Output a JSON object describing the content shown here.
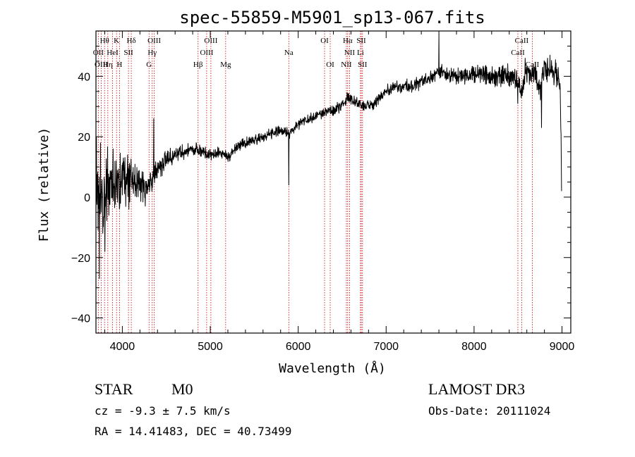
{
  "chart_data": {
    "type": "line",
    "title": "spec-55859-M5901_sp13-067.fits",
    "xlabel": "Wavelength (Å)",
    "ylabel": "Flux (relative)",
    "xlim": [
      3700,
      9100
    ],
    "ylim": [
      -45,
      55
    ],
    "x_ticks": [
      4000,
      5000,
      6000,
      7000,
      8000,
      9000
    ],
    "y_ticks": [
      -40,
      -20,
      0,
      20,
      40
    ],
    "lines": [
      {
        "label": "Hθ",
        "x": 3798,
        "row": 0
      },
      {
        "label": "K",
        "x": 3934,
        "row": 0
      },
      {
        "label": "Hδ",
        "x": 4102,
        "row": 0
      },
      {
        "label": "OIII",
        "x": 4363,
        "row": 0
      },
      {
        "label": "OIII",
        "x": 5007,
        "row": 0
      },
      {
        "label": "OI",
        "x": 6300,
        "row": 0
      },
      {
        "label": "Hα",
        "x": 6563,
        "row": 0
      },
      {
        "label": "SII",
        "x": 6717,
        "row": 0
      },
      {
        "label": "CaII",
        "x": 8542,
        "row": 0
      },
      {
        "label": "OII",
        "x": 3727,
        "row": 1
      },
      {
        "label": "HeI",
        "x": 3889,
        "row": 1
      },
      {
        "label": "SII",
        "x": 4070,
        "row": 1
      },
      {
        "label": "Hγ",
        "x": 4340,
        "row": 1
      },
      {
        "label": "OIII",
        "x": 4959,
        "row": 1
      },
      {
        "label": "Na",
        "x": 5893,
        "row": 1
      },
      {
        "label": "NII",
        "x": 6584,
        "row": 1
      },
      {
        "label": "Li",
        "x": 6708,
        "row": 1
      },
      {
        "label": "CaII",
        "x": 8498,
        "row": 1
      },
      {
        "label": "OIII",
        "x": 3760,
        "row": 2
      },
      {
        "label": "Hη",
        "x": 3835,
        "row": 2
      },
      {
        "label": "H",
        "x": 3968,
        "row": 2
      },
      {
        "label": "G",
        "x": 4304,
        "row": 2
      },
      {
        "label": "Hβ",
        "x": 4861,
        "row": 2
      },
      {
        "label": "Mg",
        "x": 5175,
        "row": 2
      },
      {
        "label": "OI",
        "x": 6364,
        "row": 2
      },
      {
        "label": "NII",
        "x": 6548,
        "row": 2
      },
      {
        "label": "SII",
        "x": 6731,
        "row": 2
      },
      {
        "label": "CaII",
        "x": 8662,
        "row": 2
      }
    ],
    "spectrum_anchors": [
      [
        3700,
        8
      ],
      [
        3720,
        5
      ],
      [
        3760,
        -5
      ],
      [
        3800,
        0
      ],
      [
        3850,
        4
      ],
      [
        3900,
        5
      ],
      [
        4000,
        6
      ],
      [
        4100,
        5
      ],
      [
        4200,
        5
      ],
      [
        4300,
        3
      ],
      [
        4340,
        6
      ],
      [
        4400,
        10
      ],
      [
        4500,
        12
      ],
      [
        4600,
        14
      ],
      [
        4700,
        15
      ],
      [
        4800,
        16
      ],
      [
        4900,
        15
      ],
      [
        5000,
        14
      ],
      [
        5100,
        15
      ],
      [
        5200,
        13
      ],
      [
        5300,
        17
      ],
      [
        5500,
        19
      ],
      [
        5700,
        21
      ],
      [
        5800,
        22
      ],
      [
        5900,
        21
      ],
      [
        6000,
        24
      ],
      [
        6200,
        27
      ],
      [
        6400,
        29
      ],
      [
        6500,
        30
      ],
      [
        6550,
        33
      ],
      [
        6600,
        32
      ],
      [
        6700,
        31
      ],
      [
        6800,
        30
      ],
      [
        6900,
        32
      ],
      [
        7000,
        35
      ],
      [
        7100,
        36
      ],
      [
        7200,
        37
      ],
      [
        7300,
        37
      ],
      [
        7400,
        38
      ],
      [
        7500,
        39
      ],
      [
        7600,
        42
      ],
      [
        7700,
        41
      ],
      [
        7800,
        40
      ],
      [
        8000,
        41
      ],
      [
        8200,
        40
      ],
      [
        8400,
        40
      ],
      [
        8500,
        39
      ],
      [
        8540,
        34
      ],
      [
        8600,
        42
      ],
      [
        8700,
        40
      ],
      [
        8750,
        35
      ],
      [
        8800,
        43
      ],
      [
        8900,
        42
      ],
      [
        8950,
        40
      ],
      [
        8980,
        37
      ],
      [
        8995,
        2
      ]
    ],
    "spectrum_features": [
      {
        "x": 3738,
        "y": -27
      },
      {
        "x": 3752,
        "y": 18
      },
      {
        "x": 3778,
        "y": -12
      },
      {
        "x": 3802,
        "y": -18
      },
      {
        "x": 3848,
        "y": -6
      },
      {
        "x": 4262,
        "y": -3
      },
      {
        "x": 4358,
        "y": 26
      },
      {
        "x": 5893,
        "y": 4
      },
      {
        "x": 7600,
        "y": 54
      },
      {
        "x": 8496,
        "y": 31
      },
      {
        "x": 8580,
        "y": 46
      },
      {
        "x": 8768,
        "y": 23
      },
      {
        "x": 8862,
        "y": 47
      }
    ],
    "noise_scale": [
      [
        3700,
        12
      ],
      [
        3950,
        8
      ],
      [
        4250,
        4.5
      ],
      [
        4600,
        2.2
      ],
      [
        5200,
        1.4
      ],
      [
        6000,
        1.3
      ],
      [
        7000,
        1.8
      ],
      [
        8000,
        2.5
      ],
      [
        8800,
        3.5
      ],
      [
        9000,
        4
      ]
    ]
  },
  "info": {
    "object_class": "STAR",
    "subclass": "M0",
    "survey": "LAMOST DR3",
    "cz": "cz = -9.3 ± 7.5 km/s",
    "obs_date": "Obs-Date: 20111024",
    "radec": "RA =  14.41483, DEC =  40.73499"
  },
  "colors": {
    "axis": "#000000",
    "spectrum": "#000000",
    "line_marker": "#cc0000"
  }
}
